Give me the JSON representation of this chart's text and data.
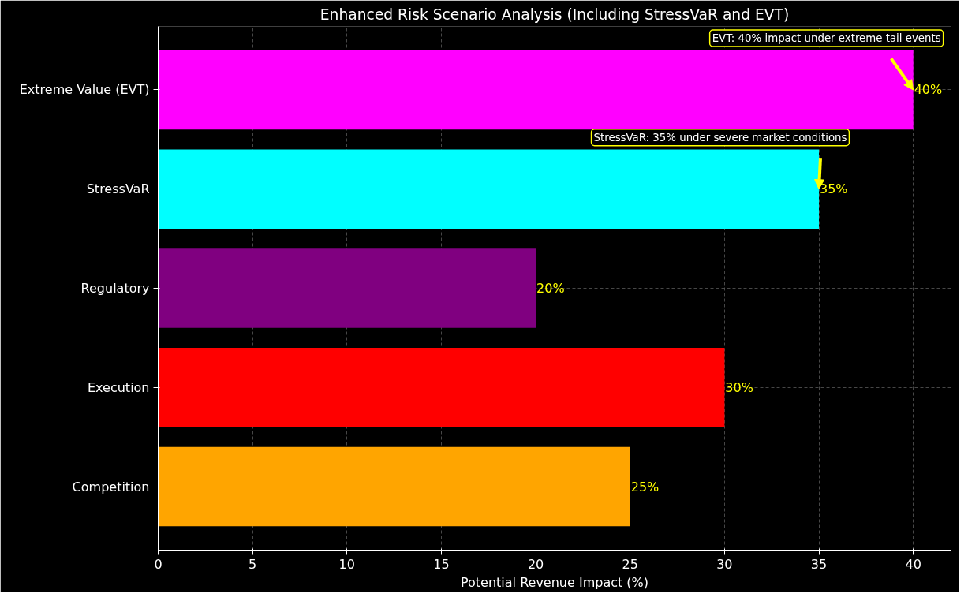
{
  "chart_data": {
    "type": "bar",
    "orientation": "horizontal",
    "title": "Enhanced Risk Scenario Analysis (Including StressVaR and EVT)",
    "xlabel": "Potential Revenue Impact (%)",
    "categories": [
      "Extreme Value (EVT)",
      "StressVaR",
      "Regulatory",
      "Execution",
      "Competition"
    ],
    "values": [
      40,
      35,
      20,
      30,
      25
    ],
    "colors": [
      "#ff00ff",
      "#00ffff",
      "#800080",
      "#ff0000",
      "#ffa500"
    ],
    "value_labels": [
      "40%",
      "35%",
      "20%",
      "30%",
      "25%"
    ],
    "xlim": [
      0,
      42
    ],
    "xticks": [
      0,
      5,
      10,
      15,
      20,
      25,
      30,
      35,
      40
    ],
    "grid": true,
    "legend": false,
    "annotations": [
      "EVT: 40% impact under extreme tail events",
      "StressVaR: 35% under severe market conditions"
    ]
  }
}
